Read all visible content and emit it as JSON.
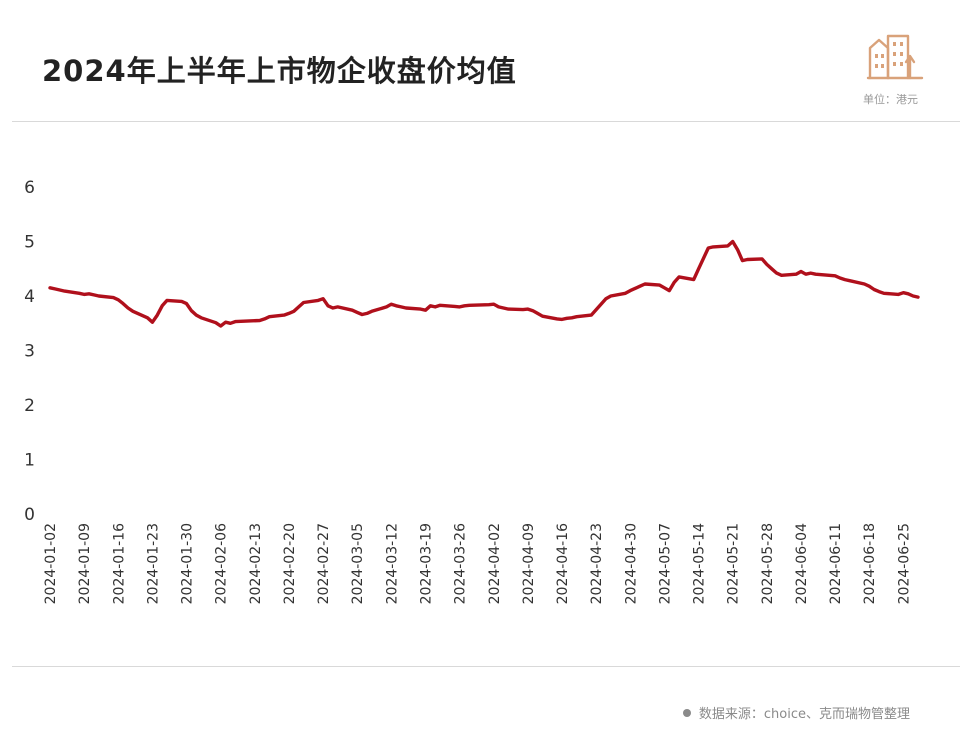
{
  "header": {
    "title": "2024年上半年上市物企收盘价均值",
    "unit": "单位：港元",
    "logo_icon": "buildings-icon"
  },
  "footer": {
    "source": "数据来源：choice、克而瑞物管整理"
  },
  "colors": {
    "line": "#b0101c",
    "logo": "#d9a27a"
  },
  "chart_data": {
    "type": "line",
    "title": "2024年上半年上市物企收盘价均值",
    "xlabel": "",
    "ylabel": "",
    "ylim": [
      0,
      6
    ],
    "yticks": [
      0,
      1,
      2,
      3,
      4,
      5,
      6
    ],
    "grid": false,
    "x_tick_labels": [
      "2024-01-02",
      "2024-01-09",
      "2024-01-16",
      "2024-01-23",
      "2024-01-30",
      "2024-02-06",
      "2024-02-13",
      "2024-02-20",
      "2024-02-27",
      "2024-03-05",
      "2024-03-12",
      "2024-03-19",
      "2024-03-26",
      "2024-04-02",
      "2024-04-09",
      "2024-04-16",
      "2024-04-23",
      "2024-04-30",
      "2024-05-07",
      "2024-05-14",
      "2024-05-21",
      "2024-05-28",
      "2024-06-04",
      "2024-06-11",
      "2024-06-18",
      "2024-06-25"
    ],
    "series": [
      {
        "points": [
          [
            "2024-01-02",
            4.15
          ],
          [
            "2024-01-03",
            4.13
          ],
          [
            "2024-01-04",
            4.11
          ],
          [
            "2024-01-05",
            4.09
          ],
          [
            "2024-01-08",
            4.05
          ],
          [
            "2024-01-09",
            4.03
          ],
          [
            "2024-01-10",
            4.04
          ],
          [
            "2024-01-11",
            4.02
          ],
          [
            "2024-01-12",
            4.0
          ],
          [
            "2024-01-15",
            3.97
          ],
          [
            "2024-01-16",
            3.93
          ],
          [
            "2024-01-17",
            3.86
          ],
          [
            "2024-01-18",
            3.78
          ],
          [
            "2024-01-19",
            3.72
          ],
          [
            "2024-01-22",
            3.6
          ],
          [
            "2024-01-23",
            3.52
          ],
          [
            "2024-01-24",
            3.65
          ],
          [
            "2024-01-25",
            3.82
          ],
          [
            "2024-01-26",
            3.92
          ],
          [
            "2024-01-29",
            3.9
          ],
          [
            "2024-01-30",
            3.86
          ],
          [
            "2024-01-31",
            3.73
          ],
          [
            "2024-02-01",
            3.65
          ],
          [
            "2024-02-02",
            3.6
          ],
          [
            "2024-02-05",
            3.51
          ],
          [
            "2024-02-06",
            3.45
          ],
          [
            "2024-02-07",
            3.52
          ],
          [
            "2024-02-08",
            3.5
          ],
          [
            "2024-02-09",
            3.53
          ],
          [
            "2024-02-14",
            3.55
          ],
          [
            "2024-02-15",
            3.58
          ],
          [
            "2024-02-16",
            3.62
          ],
          [
            "2024-02-19",
            3.65
          ],
          [
            "2024-02-20",
            3.68
          ],
          [
            "2024-02-21",
            3.72
          ],
          [
            "2024-02-22",
            3.8
          ],
          [
            "2024-02-23",
            3.88
          ],
          [
            "2024-02-26",
            3.92
          ],
          [
            "2024-02-27",
            3.95
          ],
          [
            "2024-02-28",
            3.82
          ],
          [
            "2024-02-29",
            3.78
          ],
          [
            "2024-03-01",
            3.8
          ],
          [
            "2024-03-04",
            3.74
          ],
          [
            "2024-03-05",
            3.7
          ],
          [
            "2024-03-06",
            3.66
          ],
          [
            "2024-03-07",
            3.68
          ],
          [
            "2024-03-08",
            3.72
          ],
          [
            "2024-03-11",
            3.8
          ],
          [
            "2024-03-12",
            3.85
          ],
          [
            "2024-03-13",
            3.82
          ],
          [
            "2024-03-14",
            3.8
          ],
          [
            "2024-03-15",
            3.78
          ],
          [
            "2024-03-18",
            3.76
          ],
          [
            "2024-03-19",
            3.74
          ],
          [
            "2024-03-20",
            3.82
          ],
          [
            "2024-03-21",
            3.8
          ],
          [
            "2024-03-22",
            3.83
          ],
          [
            "2024-03-25",
            3.81
          ],
          [
            "2024-03-26",
            3.8
          ],
          [
            "2024-03-27",
            3.82
          ],
          [
            "2024-03-28",
            3.83
          ],
          [
            "2024-04-01",
            3.84
          ],
          [
            "2024-04-02",
            3.85
          ],
          [
            "2024-04-03",
            3.8
          ],
          [
            "2024-04-05",
            3.76
          ],
          [
            "2024-04-08",
            3.75
          ],
          [
            "2024-04-09",
            3.76
          ],
          [
            "2024-04-10",
            3.73
          ],
          [
            "2024-04-11",
            3.68
          ],
          [
            "2024-04-12",
            3.63
          ],
          [
            "2024-04-15",
            3.58
          ],
          [
            "2024-04-16",
            3.57
          ],
          [
            "2024-04-17",
            3.59
          ],
          [
            "2024-04-18",
            3.6
          ],
          [
            "2024-04-19",
            3.62
          ],
          [
            "2024-04-22",
            3.65
          ],
          [
            "2024-04-23",
            3.75
          ],
          [
            "2024-04-24",
            3.85
          ],
          [
            "2024-04-25",
            3.95
          ],
          [
            "2024-04-26",
            4.0
          ],
          [
            "2024-04-29",
            4.05
          ],
          [
            "2024-04-30",
            4.1
          ],
          [
            "2024-05-02",
            4.18
          ],
          [
            "2024-05-03",
            4.22
          ],
          [
            "2024-05-06",
            4.2
          ],
          [
            "2024-05-07",
            4.15
          ],
          [
            "2024-05-08",
            4.1
          ],
          [
            "2024-05-09",
            4.25
          ],
          [
            "2024-05-10",
            4.35
          ],
          [
            "2024-05-13",
            4.3
          ],
          [
            "2024-05-14",
            4.5
          ],
          [
            "2024-05-16",
            4.88
          ],
          [
            "2024-05-17",
            4.9
          ],
          [
            "2024-05-20",
            4.92
          ],
          [
            "2024-05-21",
            5.0
          ],
          [
            "2024-05-22",
            4.85
          ],
          [
            "2024-05-23",
            4.65
          ],
          [
            "2024-05-24",
            4.67
          ],
          [
            "2024-05-27",
            4.68
          ],
          [
            "2024-05-28",
            4.58
          ],
          [
            "2024-05-29",
            4.5
          ],
          [
            "2024-05-30",
            4.42
          ],
          [
            "2024-05-31",
            4.38
          ],
          [
            "2024-06-03",
            4.4
          ],
          [
            "2024-06-04",
            4.45
          ],
          [
            "2024-06-05",
            4.4
          ],
          [
            "2024-06-06",
            4.42
          ],
          [
            "2024-06-07",
            4.4
          ],
          [
            "2024-06-11",
            4.37
          ],
          [
            "2024-06-12",
            4.33
          ],
          [
            "2024-06-13",
            4.3
          ],
          [
            "2024-06-14",
            4.28
          ],
          [
            "2024-06-17",
            4.22
          ],
          [
            "2024-06-18",
            4.18
          ],
          [
            "2024-06-19",
            4.12
          ],
          [
            "2024-06-20",
            4.08
          ],
          [
            "2024-06-21",
            4.05
          ],
          [
            "2024-06-24",
            4.03
          ],
          [
            "2024-06-25",
            4.06
          ],
          [
            "2024-06-26",
            4.04
          ],
          [
            "2024-06-27",
            4.0
          ],
          [
            "2024-06-28",
            3.98
          ]
        ]
      }
    ]
  }
}
